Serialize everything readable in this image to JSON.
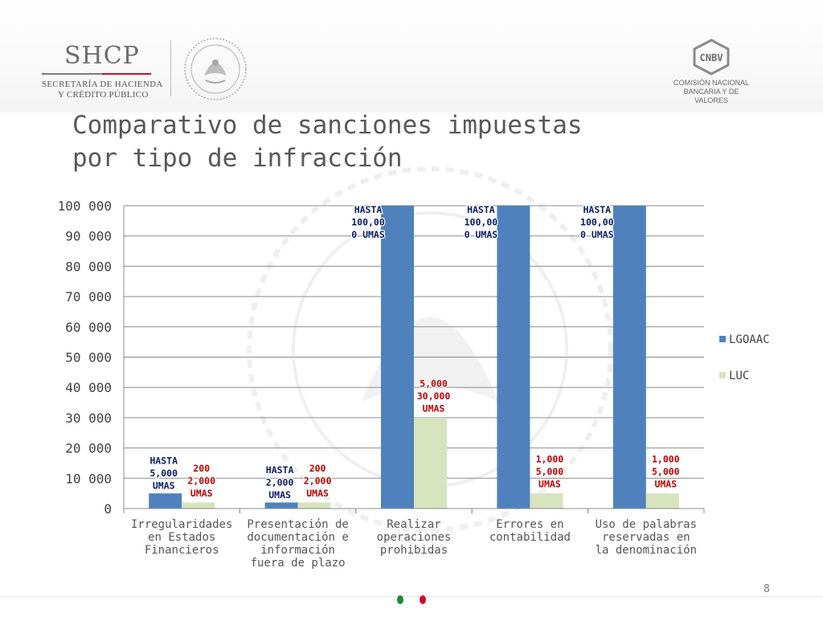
{
  "header": {
    "left_logo_text": "SHCP",
    "left_logo_sub": [
      "SECRETARÍA DE HACIENDA",
      "Y CRÉDITO PÚBLICO"
    ],
    "seal_icon": "mexican-coat-of-arms-icon",
    "right_logo_text": "CNBV",
    "right_logo_sub": [
      "COMISIÓN NACIONAL",
      "BANCARIA Y DE VALORES"
    ]
  },
  "slide": {
    "title_line1": "Comparativo de sanciones impuestas",
    "title_line2": "por tipo de infracción",
    "page_number": "8"
  },
  "colors": {
    "series1": "#4f81bd",
    "series2": "#d7e4bd",
    "label_blue": "#0b1e66",
    "label_red": "#c00000",
    "title": "#585858",
    "dot_green": "#1a8a3a",
    "dot_red": "#c8102e"
  },
  "chart_data": {
    "type": "bar",
    "categories": [
      [
        "Irregularidades",
        "en Estados",
        "Financieros"
      ],
      [
        "Presentación de",
        "documentación e",
        "información",
        "fuera de plazo"
      ],
      [
        "Realizar",
        "operaciones",
        "prohibidas"
      ],
      [
        "Errores en",
        "contabilidad"
      ],
      [
        "Uso de palabras",
        "reservadas en",
        "la denominación"
      ]
    ],
    "ylim": [
      0,
      100000
    ],
    "yticks": [
      "0",
      "10 000",
      "20 000",
      "30 000",
      "40 000",
      "50 000",
      "60 000",
      "70 000",
      "80 000",
      "90 000",
      "100 000"
    ],
    "grid": true,
    "legend_position": "right",
    "series": [
      {
        "name": "LGOAAC",
        "values": [
          5000,
          2000,
          100000,
          100000,
          100000
        ],
        "labels": [
          [
            "HASTA",
            "5,000",
            "UMAS"
          ],
          [
            "HASTA",
            "2,000",
            "UMAS"
          ],
          [
            "HASTA",
            "100,00",
            "0 UMAS"
          ],
          [
            "HASTA",
            "100,00",
            "0 UMAS"
          ],
          [
            "HASTA",
            "100,00",
            "0 UMAS"
          ]
        ]
      },
      {
        "name": "LUC",
        "values": [
          2000,
          2000,
          30000,
          5000,
          5000
        ],
        "labels": [
          [
            "200",
            "2,000",
            "UMAS"
          ],
          [
            "200",
            "2,000",
            "UMAS"
          ],
          [
            "5,000",
            "30,000",
            "UMAS"
          ],
          [
            "1,000",
            "5,000",
            "UMAS"
          ],
          [
            "1,000",
            "5,000",
            "UMAS"
          ]
        ]
      }
    ]
  }
}
